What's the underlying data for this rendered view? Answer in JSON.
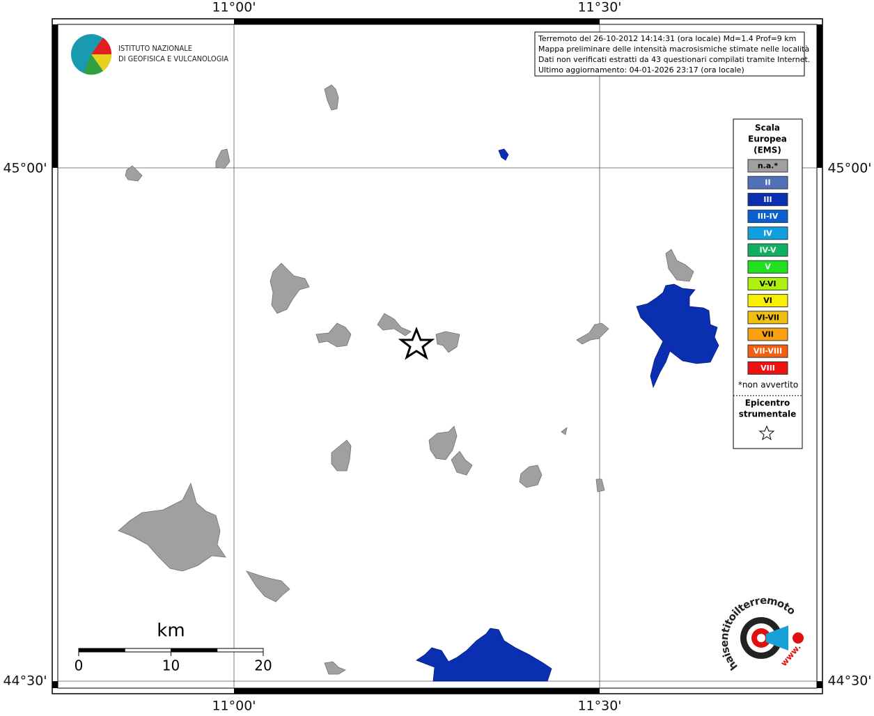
{
  "map": {
    "lon_labels": [
      "11°00'",
      "11°30'"
    ],
    "lat_labels": [
      "45°00'",
      "44°30'"
    ],
    "logo": [
      "ISTITUTO NAZIONALE",
      "DI GEOFISICA E VULCANOLOGIA"
    ],
    "info": [
      "Terremoto del 26-10-2012 14:14:31 (ora locale) Md=1.4 Prof=9 km",
      "Mappa preliminare delle intensità macrosismiche stimate nelle località",
      "Dati non verificati estratti da 43 questionari compilati tramite Internet.",
      "Ultimo aggiornamento: 04-01-2026 23:17 (ora locale)"
    ],
    "legend": {
      "title": [
        "Scala",
        "Europea",
        "(EMS)"
      ],
      "items": [
        {
          "label": "n.a.*",
          "color": "#a0a0a0"
        },
        {
          "label": "II",
          "color": "#5070b8"
        },
        {
          "label": "III",
          "color": "#0a2fb0"
        },
        {
          "label": "III-IV",
          "color": "#0a60d0"
        },
        {
          "label": "IV",
          "color": "#10a0e0"
        },
        {
          "label": "IV-V",
          "color": "#10b060"
        },
        {
          "label": "V",
          "color": "#20e020"
        },
        {
          "label": "V-VI",
          "color": "#b0f010"
        },
        {
          "label": "VI",
          "color": "#f8f000"
        },
        {
          "label": "VI-VII",
          "color": "#f0c010"
        },
        {
          "label": "VII",
          "color": "#f8a010"
        },
        {
          "label": "VII-VIII",
          "color": "#f06010"
        },
        {
          "label": "VIII",
          "color": "#f01010"
        }
      ],
      "note": "*non avvertito",
      "epicentre": [
        "Epicentro",
        "strumentale"
      ]
    },
    "scale": {
      "unit": "km",
      "ticks": [
        0,
        10,
        20
      ]
    },
    "site_logo": {
      "name": "haisentitoilterremoto.it",
      "prefix": "www."
    }
  }
}
